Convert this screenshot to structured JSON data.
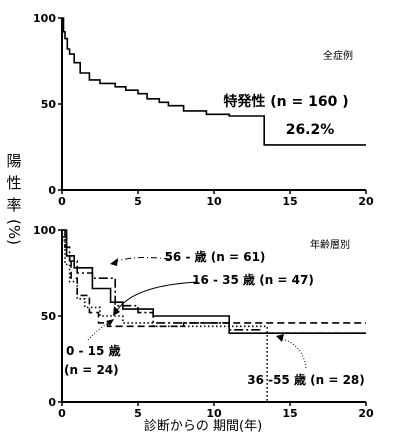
{
  "y_axis_label": [
    "陽",
    "性",
    "率",
    "(%)"
  ],
  "x_axis_label": "診断からの 期間(年)",
  "chart_data": [
    {
      "type": "line",
      "step": true,
      "title": "全症例",
      "xlim": [
        0,
        20
      ],
      "ylim": [
        0,
        100
      ],
      "x_ticks": [
        "0",
        "5",
        "10",
        "15",
        "20"
      ],
      "y_ticks": [
        "0",
        "50",
        "100"
      ],
      "annotations": [
        "特発性 (n = 160 )",
        "26.2%"
      ],
      "series": [
        {
          "style": "solid",
          "points": [
            [
              0,
              100
            ],
            [
              0.1,
              92
            ],
            [
              0.2,
              88
            ],
            [
              0.35,
              82
            ],
            [
              0.5,
              79
            ],
            [
              0.8,
              74
            ],
            [
              1.2,
              68
            ],
            [
              1.8,
              64
            ],
            [
              2.5,
              62
            ],
            [
              3.5,
              60
            ],
            [
              4.2,
              58
            ],
            [
              5,
              56
            ],
            [
              5.6,
              53
            ],
            [
              6.4,
              51
            ],
            [
              7,
              49
            ],
            [
              8,
              46
            ],
            [
              9.5,
              44
            ],
            [
              11,
              43
            ],
            [
              13.3,
              26.2
            ],
            [
              20,
              26.2
            ]
          ]
        }
      ]
    },
    {
      "type": "line",
      "step": true,
      "title": "年齢層別",
      "xlim": [
        0,
        20
      ],
      "ylim": [
        0,
        100
      ],
      "x_ticks": [
        "0",
        "5",
        "10",
        "15",
        "20"
      ],
      "y_ticks": [
        "0",
        "50",
        "100"
      ],
      "series": [
        {
          "name": "56 - 歳 (n = 61)",
          "style": "dashdot",
          "points": [
            [
              0,
              100
            ],
            [
              0.2,
              90
            ],
            [
              0.5,
              82
            ],
            [
              1,
              75
            ],
            [
              2,
              72
            ],
            [
              3.5,
              56
            ],
            [
              5,
              52
            ],
            [
              6,
              46
            ],
            [
              11,
              42
            ],
            [
              13,
              40
            ],
            [
              20,
              40
            ]
          ]
        },
        {
          "name": "16 - 35 歳 (n = 47)",
          "style": "solid",
          "points": [
            [
              0,
              100
            ],
            [
              0.3,
              85
            ],
            [
              0.8,
              78
            ],
            [
              2,
              66
            ],
            [
              3.2,
              58
            ],
            [
              4,
              54
            ],
            [
              6,
              50
            ],
            [
              11,
              40
            ],
            [
              20,
              40
            ]
          ]
        },
        {
          "name": "0 - 15 歳 (n = 24)",
          "style": "dashed",
          "points": [
            [
              0,
              96
            ],
            [
              0.3,
              85
            ],
            [
              0.6,
              72
            ],
            [
              1,
              62
            ],
            [
              1.8,
              52
            ],
            [
              2.4,
              46
            ],
            [
              3,
              44
            ],
            [
              6,
              44
            ],
            [
              8,
              46
            ],
            [
              20,
              46
            ]
          ]
        },
        {
          "name": "36 -55 歳 (n = 28)",
          "style": "dotted",
          "points": [
            [
              0,
              94
            ],
            [
              0.2,
              80
            ],
            [
              0.5,
              70
            ],
            [
              1,
              60
            ],
            [
              1.5,
              55
            ],
            [
              2.5,
              50
            ],
            [
              4,
              46
            ],
            [
              6,
              44
            ],
            [
              13.5,
              42
            ],
            [
              13.5,
              0
            ]
          ]
        }
      ]
    }
  ]
}
